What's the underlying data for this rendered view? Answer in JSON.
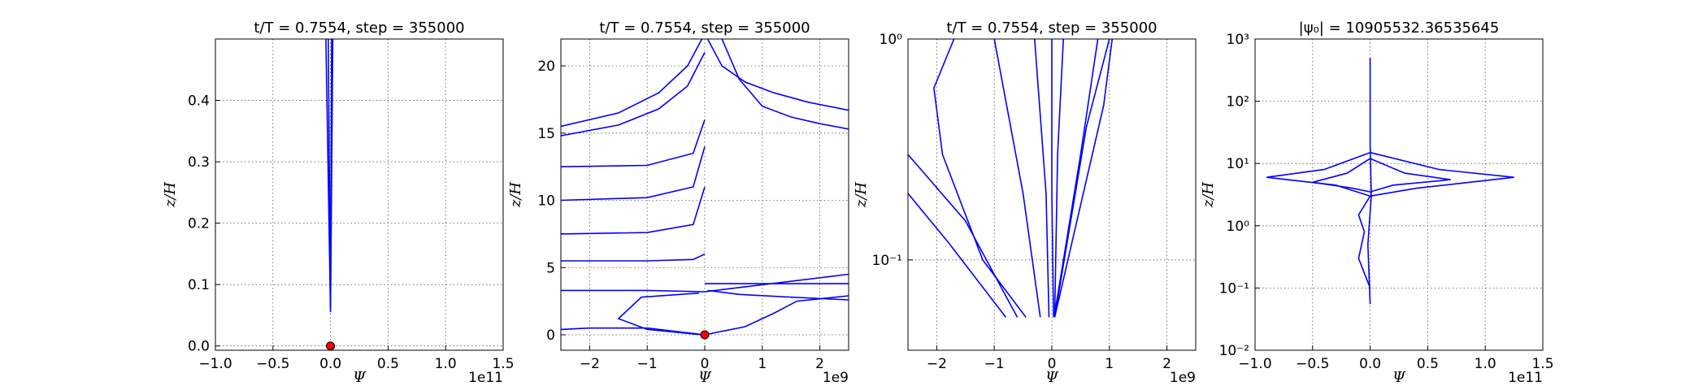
{
  "chart_data": [
    {
      "type": "line",
      "title": "t/T = 0.7554, step = 355000",
      "xlabel": "Ψ",
      "ylabel": "z/H",
      "x_offset": "1e11",
      "xlim": [
        -1,
        1.5
      ],
      "ylim": [
        -0.007,
        0.5
      ],
      "log_y": false,
      "grid": true,
      "xticks": [
        {
          "value": -1,
          "label": "−1.0"
        },
        {
          "value": -0.5,
          "label": "−0.5"
        },
        {
          "value": 0,
          "label": "0.0"
        },
        0.5,
        {
          "value": 1,
          "label": "1.0"
        },
        1.5
      ],
      "yticks": [
        {
          "value": 0,
          "label": "0.0"
        },
        0.1,
        0.2,
        0.3,
        0.4
      ],
      "series": [
        {
          "color": "#0000ff",
          "x": [
            -0.04,
            0,
            0.02
          ],
          "values": [
            0.5,
            0.055,
            0.5
          ]
        },
        {
          "color": "#0000ff",
          "x": [
            -0.02,
            0,
            0.01
          ],
          "values": [
            0.5,
            0.06,
            0.5
          ]
        },
        {
          "color": "#ff0000",
          "marker": true,
          "x": [
            0
          ],
          "values": [
            0
          ]
        }
      ]
    },
    {
      "type": "line",
      "title": "t/T = 0.7554, step = 355000",
      "xlabel": "Ψ",
      "ylabel": "z/H",
      "x_offset": "1e9",
      "xlim": [
        -2.5,
        2.5
      ],
      "ylim": [
        -1.15,
        22
      ],
      "log_y": false,
      "grid": true,
      "xticks": [
        {
          "value": -2,
          "label": "−2"
        },
        {
          "value": -1,
          "label": "−1"
        },
        0,
        1,
        2
      ],
      "yticks": [
        0,
        5,
        10,
        15,
        20
      ],
      "series": [
        {
          "color": "#0000ff",
          "x": [
            0.05,
            0.3,
            0.7,
            1.2,
            1.8,
            2.5
          ],
          "values": [
            22,
            20,
            18.8,
            18,
            17.3,
            16.7
          ]
        },
        {
          "color": "#0000ff",
          "x": [
            0.3,
            0.6,
            1,
            1.5,
            2,
            2.5
          ],
          "values": [
            22,
            19,
            17,
            16.2,
            15.7,
            15.3
          ]
        },
        {
          "color": "#0000ff",
          "x": [
            -2.5,
            -1.5,
            -0.8,
            -0.3,
            -0.05
          ],
          "values": [
            15.5,
            16.5,
            18,
            20,
            22
          ]
        },
        {
          "color": "#0000ff",
          "x": [
            -2.5,
            -1.5,
            -0.8,
            -0.3,
            0
          ],
          "values": [
            14.8,
            15.6,
            16.8,
            18.5,
            21
          ]
        },
        {
          "color": "#0000ff",
          "x": [
            -2.5,
            -1,
            -0.2,
            0
          ],
          "values": [
            12.5,
            12.6,
            13.5,
            16
          ]
        },
        {
          "color": "#0000ff",
          "x": [
            -2.5,
            -1,
            -0.2,
            0
          ],
          "values": [
            10,
            10.2,
            11,
            14
          ]
        },
        {
          "color": "#0000ff",
          "x": [
            -2.5,
            -1,
            -0.2,
            0
          ],
          "values": [
            7.5,
            7.6,
            8.2,
            11
          ]
        },
        {
          "color": "#0000ff",
          "x": [
            -2.5,
            -1,
            -0.2,
            0
          ],
          "values": [
            5.5,
            5.5,
            5.6,
            6
          ]
        },
        {
          "color": "#0000ff",
          "x": [
            -2.5,
            -1,
            0,
            2.5
          ],
          "values": [
            3.3,
            3.3,
            3.2,
            4.5
          ]
        },
        {
          "color": "#0000ff",
          "x": [
            0,
            2.5
          ],
          "values": [
            3.8,
            3.8
          ]
        },
        {
          "color": "#0000ff",
          "x": [
            0.05,
            0.6,
            1.5,
            2.5
          ],
          "values": [
            3.3,
            3,
            2.8,
            2.6
          ]
        },
        {
          "color": "#0000ff",
          "x": [
            0,
            -1,
            -2,
            -2.5
          ],
          "values": [
            0,
            0.5,
            0.5,
            0.4
          ]
        },
        {
          "color": "#0000ff",
          "x": [
            -0.05,
            -1,
            -1.5,
            -1.1,
            -0.1
          ],
          "values": [
            0,
            0.4,
            1.2,
            2.8,
            3.1
          ]
        },
        {
          "color": "#0000ff",
          "x": [
            0,
            0.7,
            1.2,
            1.6,
            2.5
          ],
          "values": [
            0,
            0.6,
            1.6,
            2.5,
            2.9
          ]
        },
        {
          "color": "#ff0000",
          "marker": true,
          "x": [
            0
          ],
          "values": [
            0
          ]
        }
      ]
    },
    {
      "type": "line",
      "title": "t/T = 0.7554, step = 355000",
      "xlabel": "Ψ",
      "ylabel": "z/H",
      "x_offset": "1e9",
      "xlim": [
        -2.5,
        2.5
      ],
      "ylim": [
        0.039,
        1
      ],
      "log_y": true,
      "grid": true,
      "xticks": [
        {
          "value": -2,
          "label": "−2"
        },
        {
          "value": -1,
          "label": "−1"
        },
        0,
        1,
        2
      ],
      "yticks": [
        {
          "value": 0.1,
          "label": "10⁻¹"
        },
        {
          "value": 1,
          "label": "10⁰"
        }
      ],
      "series": [
        {
          "color": "#0000ff",
          "x": [
            -1.7,
            -2.05,
            -1.9,
            -1.2,
            -0.45
          ],
          "values": [
            1,
            0.6,
            0.3,
            0.1,
            0.055
          ]
        },
        {
          "color": "#0000ff",
          "x": [
            -2.5,
            -1.5,
            -0.6
          ],
          "values": [
            0.3,
            0.15,
            0.055
          ]
        },
        {
          "color": "#0000ff",
          "x": [
            -2.5,
            -1.8,
            -0.8
          ],
          "values": [
            0.2,
            0.12,
            0.055
          ]
        },
        {
          "color": "#0000ff",
          "x": [
            -1,
            -0.5,
            -0.2
          ],
          "values": [
            1,
            0.2,
            0.055
          ]
        },
        {
          "color": "#0000ff",
          "x": [
            -0.3,
            -0.1,
            -0.05
          ],
          "values": [
            1,
            0.2,
            0.055
          ]
        },
        {
          "color": "#0000ff",
          "x": [
            0,
            0,
            0.03
          ],
          "values": [
            1,
            0.2,
            0.055
          ]
        },
        {
          "color": "#0000ff",
          "x": [
            0.2,
            0.1,
            0.05
          ],
          "values": [
            1,
            0.3,
            0.055
          ]
        },
        {
          "color": "#0000ff",
          "x": [
            1,
            0.6,
            0.05
          ],
          "values": [
            1,
            0.4,
            0.055
          ]
        },
        {
          "color": "#0000ff",
          "x": [
            1.05,
            0.9,
            0.05
          ],
          "values": [
            1,
            0.5,
            0.055
          ]
        },
        {
          "color": "#0000ff",
          "x": [
            0.8,
            0.5,
            0.04
          ],
          "values": [
            1,
            0.3,
            0.055
          ]
        }
      ]
    },
    {
      "type": "line",
      "title": "|ψ₀| = 10905532.36535645",
      "xlabel": "Ψ",
      "ylabel": "z/H",
      "x_offset": "1e11",
      "xlim": [
        -1,
        1.5
      ],
      "ylim": [
        0.01,
        1000
      ],
      "log_y": true,
      "grid": true,
      "xticks": [
        {
          "value": -1,
          "label": "−1.0"
        },
        {
          "value": -0.5,
          "label": "−0.5"
        },
        {
          "value": 0,
          "label": "0.0"
        },
        0.5,
        {
          "value": 1,
          "label": "1.0"
        },
        1.5
      ],
      "yticks": [
        {
          "value": 0.01,
          "label": "10⁻²"
        },
        {
          "value": 0.1,
          "label": "10⁻¹"
        },
        {
          "value": 1,
          "label": "10⁰"
        },
        {
          "value": 10,
          "label": "10¹"
        },
        {
          "value": 100,
          "label": "10²"
        },
        {
          "value": 1000,
          "label": "10³"
        }
      ],
      "series": [
        {
          "color": "#0000ff",
          "x": [
            0,
            0,
            0.01,
            -0.02,
            0
          ],
          "values": [
            500,
            20,
            3,
            0.5,
            0.055
          ]
        },
        {
          "color": "#0000ff",
          "x": [
            0,
            -0.4,
            -0.9,
            -0.3,
            0
          ],
          "values": [
            15,
            8,
            6,
            4.5,
            3
          ]
        },
        {
          "color": "#0000ff",
          "x": [
            0,
            0.6,
            1.25,
            0.4,
            0
          ],
          "values": [
            15,
            8,
            6,
            4,
            3
          ]
        },
        {
          "color": "#0000ff",
          "x": [
            0,
            0.3,
            0.7,
            0.2,
            0
          ],
          "values": [
            12,
            7,
            5.5,
            4.5,
            3.5
          ]
        },
        {
          "color": "#0000ff",
          "x": [
            0,
            -0.2,
            -0.5,
            -0.15,
            0
          ],
          "values": [
            12,
            7,
            5,
            4,
            3.5
          ]
        },
        {
          "color": "#0000ff",
          "x": [
            0,
            -0.1,
            -0.05,
            -0.1,
            0
          ],
          "values": [
            3,
            1.5,
            0.8,
            0.3,
            0.1
          ]
        }
      ]
    }
  ]
}
